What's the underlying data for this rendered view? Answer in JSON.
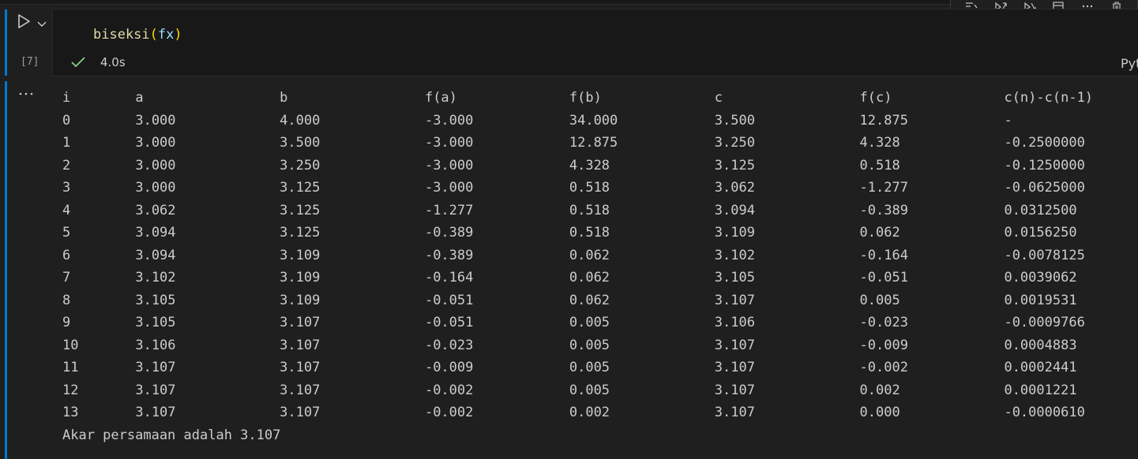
{
  "cell": {
    "execution_count": "[7]",
    "code": {
      "fn": "biseksi",
      "open": "(",
      "arg": "fx",
      "close": ")"
    },
    "status": {
      "duration": "4.0s"
    },
    "language_label": "Python"
  },
  "output": {
    "headers": [
      "i",
      "a",
      "b",
      "f(a)",
      "f(b)",
      "c",
      "f(c)",
      "c(n)-c(n-1)"
    ],
    "rows": [
      [
        "0",
        "3.000",
        "4.000",
        "-3.000",
        "34.000",
        "3.500",
        "12.875",
        "-"
      ],
      [
        "1",
        "3.000",
        "3.500",
        "-3.000",
        "12.875",
        "3.250",
        "4.328",
        "-0.2500000"
      ],
      [
        "2",
        "3.000",
        "3.250",
        "-3.000",
        "4.328",
        "3.125",
        "0.518",
        "-0.1250000"
      ],
      [
        "3",
        "3.000",
        "3.125",
        "-3.000",
        "0.518",
        "3.062",
        "-1.277",
        "-0.0625000"
      ],
      [
        "4",
        "3.062",
        "3.125",
        "-1.277",
        "0.518",
        "3.094",
        "-0.389",
        "0.0312500"
      ],
      [
        "5",
        "3.094",
        "3.125",
        "-0.389",
        "0.518",
        "3.109",
        "0.062",
        "0.0156250"
      ],
      [
        "6",
        "3.094",
        "3.109",
        "-0.389",
        "0.062",
        "3.102",
        "-0.164",
        "-0.0078125"
      ],
      [
        "7",
        "3.102",
        "3.109",
        "-0.164",
        "0.062",
        "3.105",
        "-0.051",
        "0.0039062"
      ],
      [
        "8",
        "3.105",
        "3.109",
        "-0.051",
        "0.062",
        "3.107",
        "0.005",
        "0.0019531"
      ],
      [
        "9",
        "3.105",
        "3.107",
        "-0.051",
        "0.005",
        "3.106",
        "-0.023",
        "-0.0009766"
      ],
      [
        "10",
        "3.106",
        "3.107",
        "-0.023",
        "0.005",
        "3.107",
        "-0.009",
        "0.0004883"
      ],
      [
        "11",
        "3.107",
        "3.107",
        "-0.009",
        "0.005",
        "3.107",
        "-0.002",
        "0.0002441"
      ],
      [
        "12",
        "3.107",
        "3.107",
        "-0.002",
        "0.005",
        "3.107",
        "0.002",
        "0.0001221"
      ],
      [
        "13",
        "3.107",
        "3.107",
        "-0.002",
        "0.002",
        "3.107",
        "0.000",
        "-0.0000610"
      ]
    ],
    "result": "Akar persamaan adalah 3.107"
  },
  "icons": {
    "run": "play-icon",
    "run_options": "chevron-down-icon",
    "status": "check-icon",
    "output_menu": "ellipsis-icon",
    "toolbar": [
      "run-by-line-icon",
      "execute-above-icon",
      "execute-below-icon",
      "split-cell-icon",
      "more-icon",
      "delete-icon"
    ]
  },
  "colors": {
    "focus_bar": "#0078d4",
    "success_check": "#89d185",
    "function": "#dcdcaa",
    "bracket": "#ffd700",
    "variable": "#9cdcfe"
  }
}
